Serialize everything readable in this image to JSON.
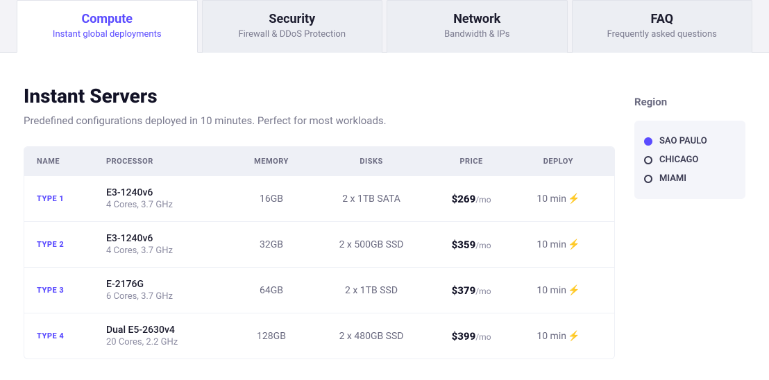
{
  "colors": {
    "accent": "#5b4cff",
    "bolt": "#ffb020",
    "text": "#1c1c2e",
    "muted": "#7b7b8f",
    "page_bg": "#f3f3f7",
    "panel_bg": "#ffffff",
    "table_header_bg": "#eef0f6"
  },
  "tabs": [
    {
      "title": "Compute",
      "sub": "Instant global deployments",
      "active": true
    },
    {
      "title": "Security",
      "sub": "Firewall & DDoS Protection",
      "active": false
    },
    {
      "title": "Network",
      "sub": "Bandwidth & IPs",
      "active": false
    },
    {
      "title": "FAQ",
      "sub": "Frequently asked questions",
      "active": false
    }
  ],
  "section": {
    "title": "Instant Servers",
    "subtitle": "Predefined configurations deployed in 10 minutes. Perfect for most workloads."
  },
  "table": {
    "columns": [
      "NAME",
      "PROCESSOR",
      "MEMORY",
      "DISKS",
      "PRICE",
      "DEPLOY"
    ],
    "rows": [
      {
        "name": "TYPE 1",
        "proc": "E3-1240v6",
        "proc_sub": "4 Cores, 3.7 GHz",
        "memory": "16GB",
        "disks": "2 x 1TB SATA",
        "price": "$269",
        "price_sub": "/mo",
        "deploy": "10 min"
      },
      {
        "name": "TYPE 2",
        "proc": "E3-1240v6",
        "proc_sub": "4 Cores, 3.7 GHz",
        "memory": "32GB",
        "disks": "2 x 500GB SSD",
        "price": "$359",
        "price_sub": "/mo",
        "deploy": "10 min"
      },
      {
        "name": "TYPE 3",
        "proc": "E-2176G",
        "proc_sub": "6 Cores, 3.7 GHz",
        "memory": "64GB",
        "disks": "2 x 1TB SSD",
        "price": "$379",
        "price_sub": "/mo",
        "deploy": "10 min"
      },
      {
        "name": "TYPE 4",
        "proc": "Dual E5-2630v4",
        "proc_sub": "20 Cores, 2.2 GHz",
        "memory": "128GB",
        "disks": "2 x 480GB SSD",
        "price": "$399",
        "price_sub": "/mo",
        "deploy": "10 min"
      }
    ]
  },
  "region": {
    "title": "Region",
    "items": [
      {
        "label": "SAO PAULO",
        "selected": true
      },
      {
        "label": "CHICAGO",
        "selected": false
      },
      {
        "label": "MIAMI",
        "selected": false
      }
    ]
  }
}
